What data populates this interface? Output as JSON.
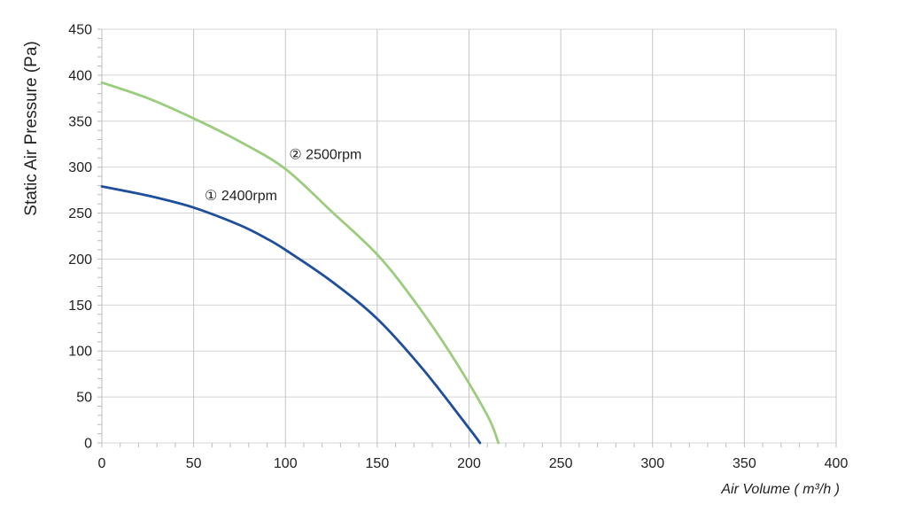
{
  "chart_data": {
    "type": "line",
    "title": "",
    "xlabel": "Air Volume ( m³/h )",
    "ylabel": "Static Air Pressure  (Pa)",
    "xlim": [
      0,
      400
    ],
    "ylim": [
      0,
      450
    ],
    "xticks": [
      0,
      50,
      100,
      150,
      200,
      250,
      300,
      350,
      400
    ],
    "yticks": [
      0,
      50,
      100,
      150,
      200,
      250,
      300,
      350,
      400,
      450
    ],
    "grid": true,
    "series": [
      {
        "name": "① 2400rpm",
        "color": "#1f4e9a",
        "x": [
          0,
          25,
          50,
          75,
          90,
          100,
          125,
          150,
          175,
          200,
          206
        ],
        "y": [
          279,
          269,
          256,
          237,
          222,
          210,
          176,
          135,
          80,
          16,
          0
        ]
      },
      {
        "name": "② 2500rpm",
        "color": "#9ccc7e",
        "x": [
          0,
          25,
          50,
          75,
          100,
          125,
          150,
          170,
          190,
          210,
          216
        ],
        "y": [
          392,
          375,
          353,
          328,
          298,
          252,
          205,
          155,
          97,
          30,
          0
        ]
      }
    ],
    "annotations": [
      {
        "text": "① 2400rpm",
        "x": 56,
        "y": 264
      },
      {
        "text": "② 2500rpm",
        "x": 102,
        "y": 309
      }
    ]
  }
}
